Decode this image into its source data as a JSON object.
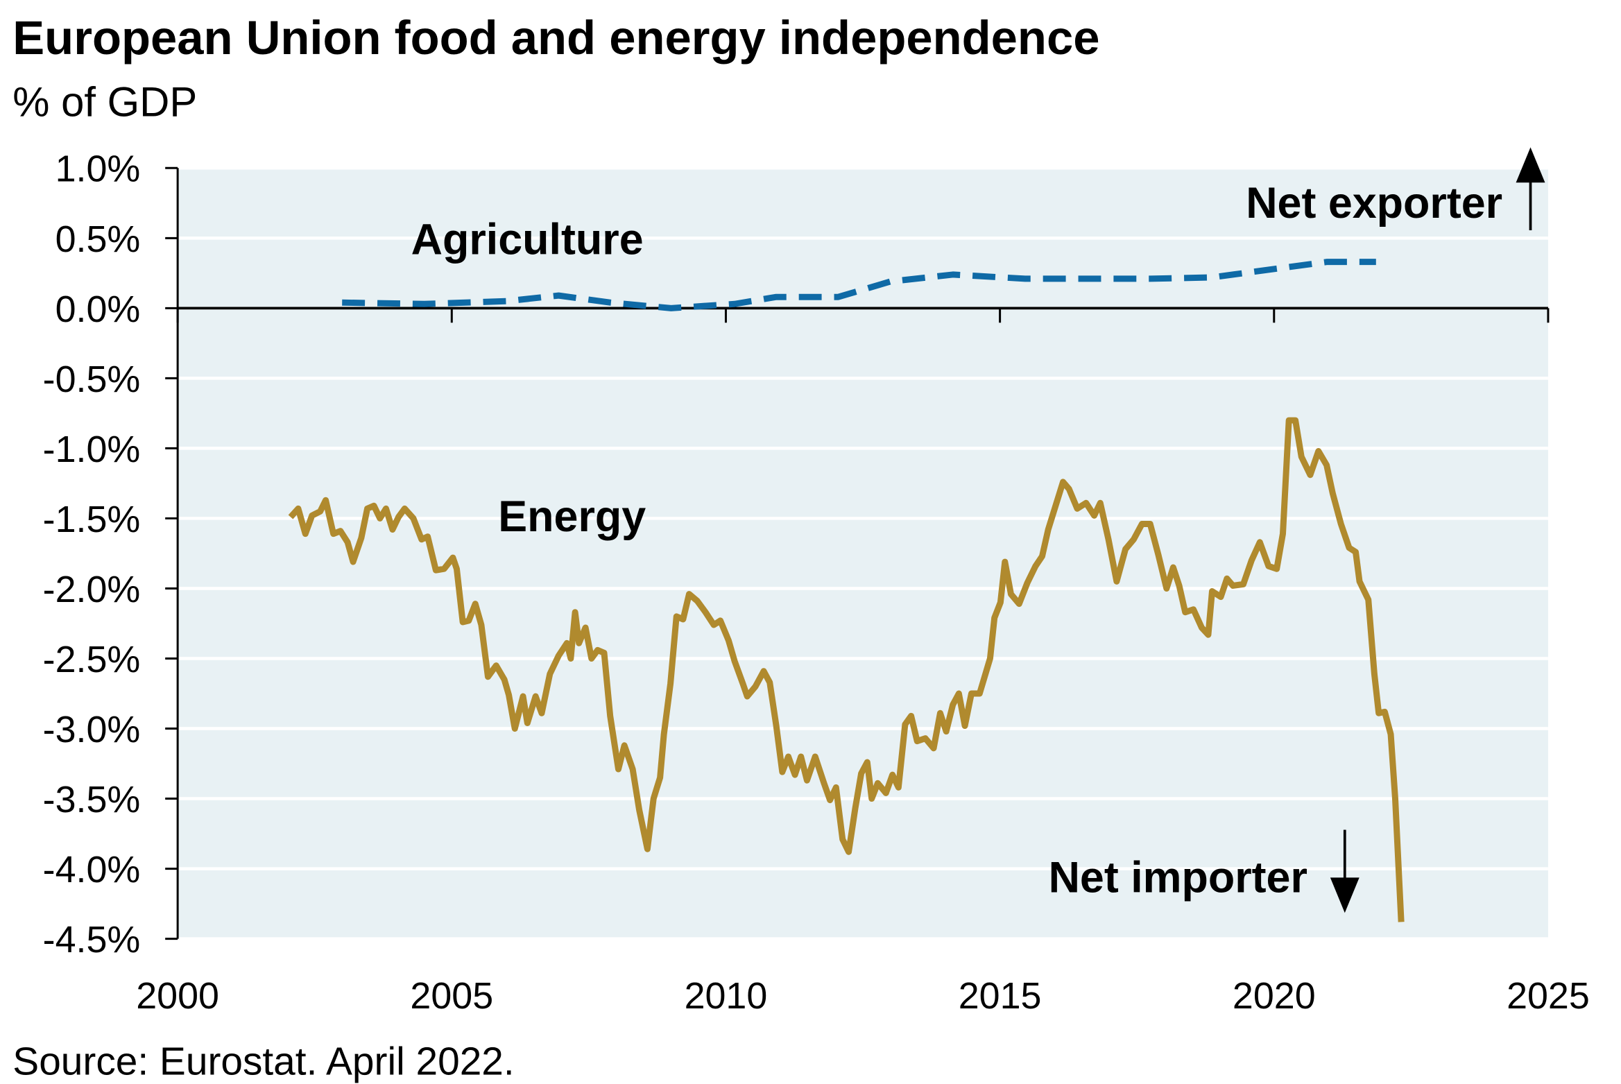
{
  "chart_data": {
    "type": "line",
    "title": "European Union food and energy independence",
    "subtitle": "% of GDP",
    "source": "Source: Eurostat. April 2022.",
    "annotations": [
      "Net exporter",
      "Net importer"
    ],
    "xlim": [
      2000,
      2025
    ],
    "xticks": [
      2000,
      2005,
      2010,
      2015,
      2020,
      2025
    ],
    "ylim": [
      -4.5,
      1.0
    ],
    "yticks": [
      {
        "value": 1.0,
        "label": "1.0%"
      },
      {
        "value": 0.5,
        "label": "0.5%"
      },
      {
        "value": 0.0,
        "label": "0.0%"
      },
      {
        "value": -0.5,
        "label": "-0.5%"
      },
      {
        "value": -1.0,
        "label": "-1.0%"
      },
      {
        "value": -1.5,
        "label": "-1.5%"
      },
      {
        "value": -2.0,
        "label": "-2.0%"
      },
      {
        "value": -2.5,
        "label": "-2.5%"
      },
      {
        "value": -3.0,
        "label": "-3.0%"
      },
      {
        "value": -3.5,
        "label": "-3.5%"
      },
      {
        "value": -4.0,
        "label": "-4.0%"
      },
      {
        "value": -4.5,
        "label": "-4.5%"
      }
    ],
    "grid": true,
    "series": [
      {
        "name": "Agriculture",
        "color": "#0f6aa6",
        "dashed": true,
        "x": [
          2003.0,
          2004.5,
          2006.0,
          2006.95,
          2007.9,
          2009.0,
          2010.16,
          2010.92,
          2012.05,
          2013.0,
          2014.14,
          2015.46,
          2016.6,
          2017.74,
          2018.87,
          2020.2,
          2020.96,
          2021.86
        ],
        "values": [
          0.04,
          0.03,
          0.05,
          0.09,
          0.04,
          0.0,
          0.03,
          0.08,
          0.08,
          0.19,
          0.24,
          0.21,
          0.21,
          0.21,
          0.22,
          0.29,
          0.33,
          0.33
        ]
      },
      {
        "name": "Energy",
        "color": "#b08a2e",
        "dashed": false,
        "x": [
          2002.06,
          2002.2,
          2002.33,
          2002.45,
          2002.6,
          2002.7,
          2002.84,
          2002.97,
          2003.1,
          2003.2,
          2003.35,
          2003.46,
          2003.58,
          2003.69,
          2003.8,
          2003.92,
          2004.03,
          2004.14,
          2004.3,
          2004.45,
          2004.56,
          2004.71,
          2004.86,
          2005.02,
          2005.09,
          2005.2,
          2005.31,
          2005.43,
          2005.54,
          2005.66,
          2005.81,
          2005.96,
          2006.04,
          2006.15,
          2006.3,
          2006.38,
          2006.53,
          2006.64,
          2006.79,
          2006.95,
          2007.1,
          2007.17,
          2007.25,
          2007.32,
          2007.44,
          2007.55,
          2007.66,
          2007.78,
          2007.89,
          2008.04,
          2008.15,
          2008.3,
          2008.42,
          2008.57,
          2008.68,
          2008.8,
          2008.87,
          2008.99,
          2009.1,
          2009.22,
          2009.33,
          2009.48,
          2009.63,
          2009.78,
          2009.9,
          2010.05,
          2010.16,
          2010.31,
          2010.39,
          2010.54,
          2010.69,
          2010.8,
          2010.92,
          2011.03,
          2011.14,
          2011.26,
          2011.37,
          2011.48,
          2011.63,
          2011.79,
          2011.9,
          2012.01,
          2012.13,
          2012.24,
          2012.36,
          2012.47,
          2012.58,
          2012.66,
          2012.77,
          2012.92,
          2013.04,
          2013.15,
          2013.27,
          2013.38,
          2013.49,
          2013.64,
          2013.79,
          2013.91,
          2014.02,
          2014.14,
          2014.25,
          2014.36,
          2014.48,
          2014.63,
          2014.82,
          2014.9,
          2015.01,
          2015.09,
          2015.2,
          2015.35,
          2015.5,
          2015.65,
          2015.77,
          2015.88,
          2016.0,
          2016.15,
          2016.26,
          2016.41,
          2016.57,
          2016.72,
          2016.83,
          2016.98,
          2017.13,
          2017.29,
          2017.44,
          2017.59,
          2017.74,
          2017.89,
          2018.04,
          2018.16,
          2018.27,
          2018.38,
          2018.53,
          2018.68,
          2018.8,
          2018.87,
          2019.03,
          2019.14,
          2019.25,
          2019.44,
          2019.59,
          2019.74,
          2019.9,
          2020.05,
          2020.16,
          2020.27,
          2020.39,
          2020.5,
          2020.66,
          2020.81,
          2020.96,
          2021.07,
          2021.22,
          2021.37,
          2021.49,
          2021.56,
          2021.72,
          2021.83,
          2021.91,
          2022.02,
          2022.13,
          2022.21,
          2022.32
        ],
        "values": [
          -1.49,
          -1.43,
          -1.61,
          -1.48,
          -1.45,
          -1.37,
          -1.61,
          -1.59,
          -1.67,
          -1.81,
          -1.64,
          -1.43,
          -1.41,
          -1.5,
          -1.43,
          -1.58,
          -1.49,
          -1.43,
          -1.5,
          -1.65,
          -1.63,
          -1.87,
          -1.86,
          -1.78,
          -1.86,
          -2.24,
          -2.23,
          -2.11,
          -2.26,
          -2.63,
          -2.55,
          -2.65,
          -2.76,
          -3.0,
          -2.77,
          -2.96,
          -2.77,
          -2.89,
          -2.61,
          -2.48,
          -2.39,
          -2.5,
          -2.17,
          -2.39,
          -2.28,
          -2.5,
          -2.44,
          -2.46,
          -2.91,
          -3.29,
          -3.12,
          -3.29,
          -3.58,
          -3.86,
          -3.5,
          -3.35,
          -3.04,
          -2.68,
          -2.2,
          -2.22,
          -2.04,
          -2.09,
          -2.17,
          -2.26,
          -2.23,
          -2.37,
          -2.52,
          -2.68,
          -2.77,
          -2.7,
          -2.59,
          -2.67,
          -2.98,
          -3.31,
          -3.2,
          -3.33,
          -3.2,
          -3.37,
          -3.2,
          -3.39,
          -3.51,
          -3.42,
          -3.79,
          -3.88,
          -3.57,
          -3.32,
          -3.24,
          -3.5,
          -3.39,
          -3.46,
          -3.33,
          -3.42,
          -2.97,
          -2.91,
          -3.09,
          -3.07,
          -3.14,
          -2.89,
          -3.02,
          -2.83,
          -2.75,
          -2.98,
          -2.75,
          -2.75,
          -2.5,
          -2.21,
          -2.1,
          -1.81,
          -2.04,
          -2.11,
          -1.96,
          -1.84,
          -1.77,
          -1.58,
          -1.43,
          -1.24,
          -1.29,
          -1.43,
          -1.39,
          -1.48,
          -1.39,
          -1.65,
          -1.95,
          -1.72,
          -1.65,
          -1.54,
          -1.54,
          -1.76,
          -2.0,
          -1.85,
          -1.98,
          -2.17,
          -2.15,
          -2.28,
          -2.33,
          -2.02,
          -2.06,
          -1.93,
          -1.98,
          -1.97,
          -1.8,
          -1.67,
          -1.84,
          -1.86,
          -1.61,
          -0.8,
          -0.8,
          -1.06,
          -1.19,
          -1.02,
          -1.12,
          -1.32,
          -1.54,
          -1.71,
          -1.74,
          -1.95,
          -2.08,
          -2.61,
          -2.89,
          -2.88,
          -3.04,
          -3.5,
          -4.38
        ]
      }
    ]
  }
}
